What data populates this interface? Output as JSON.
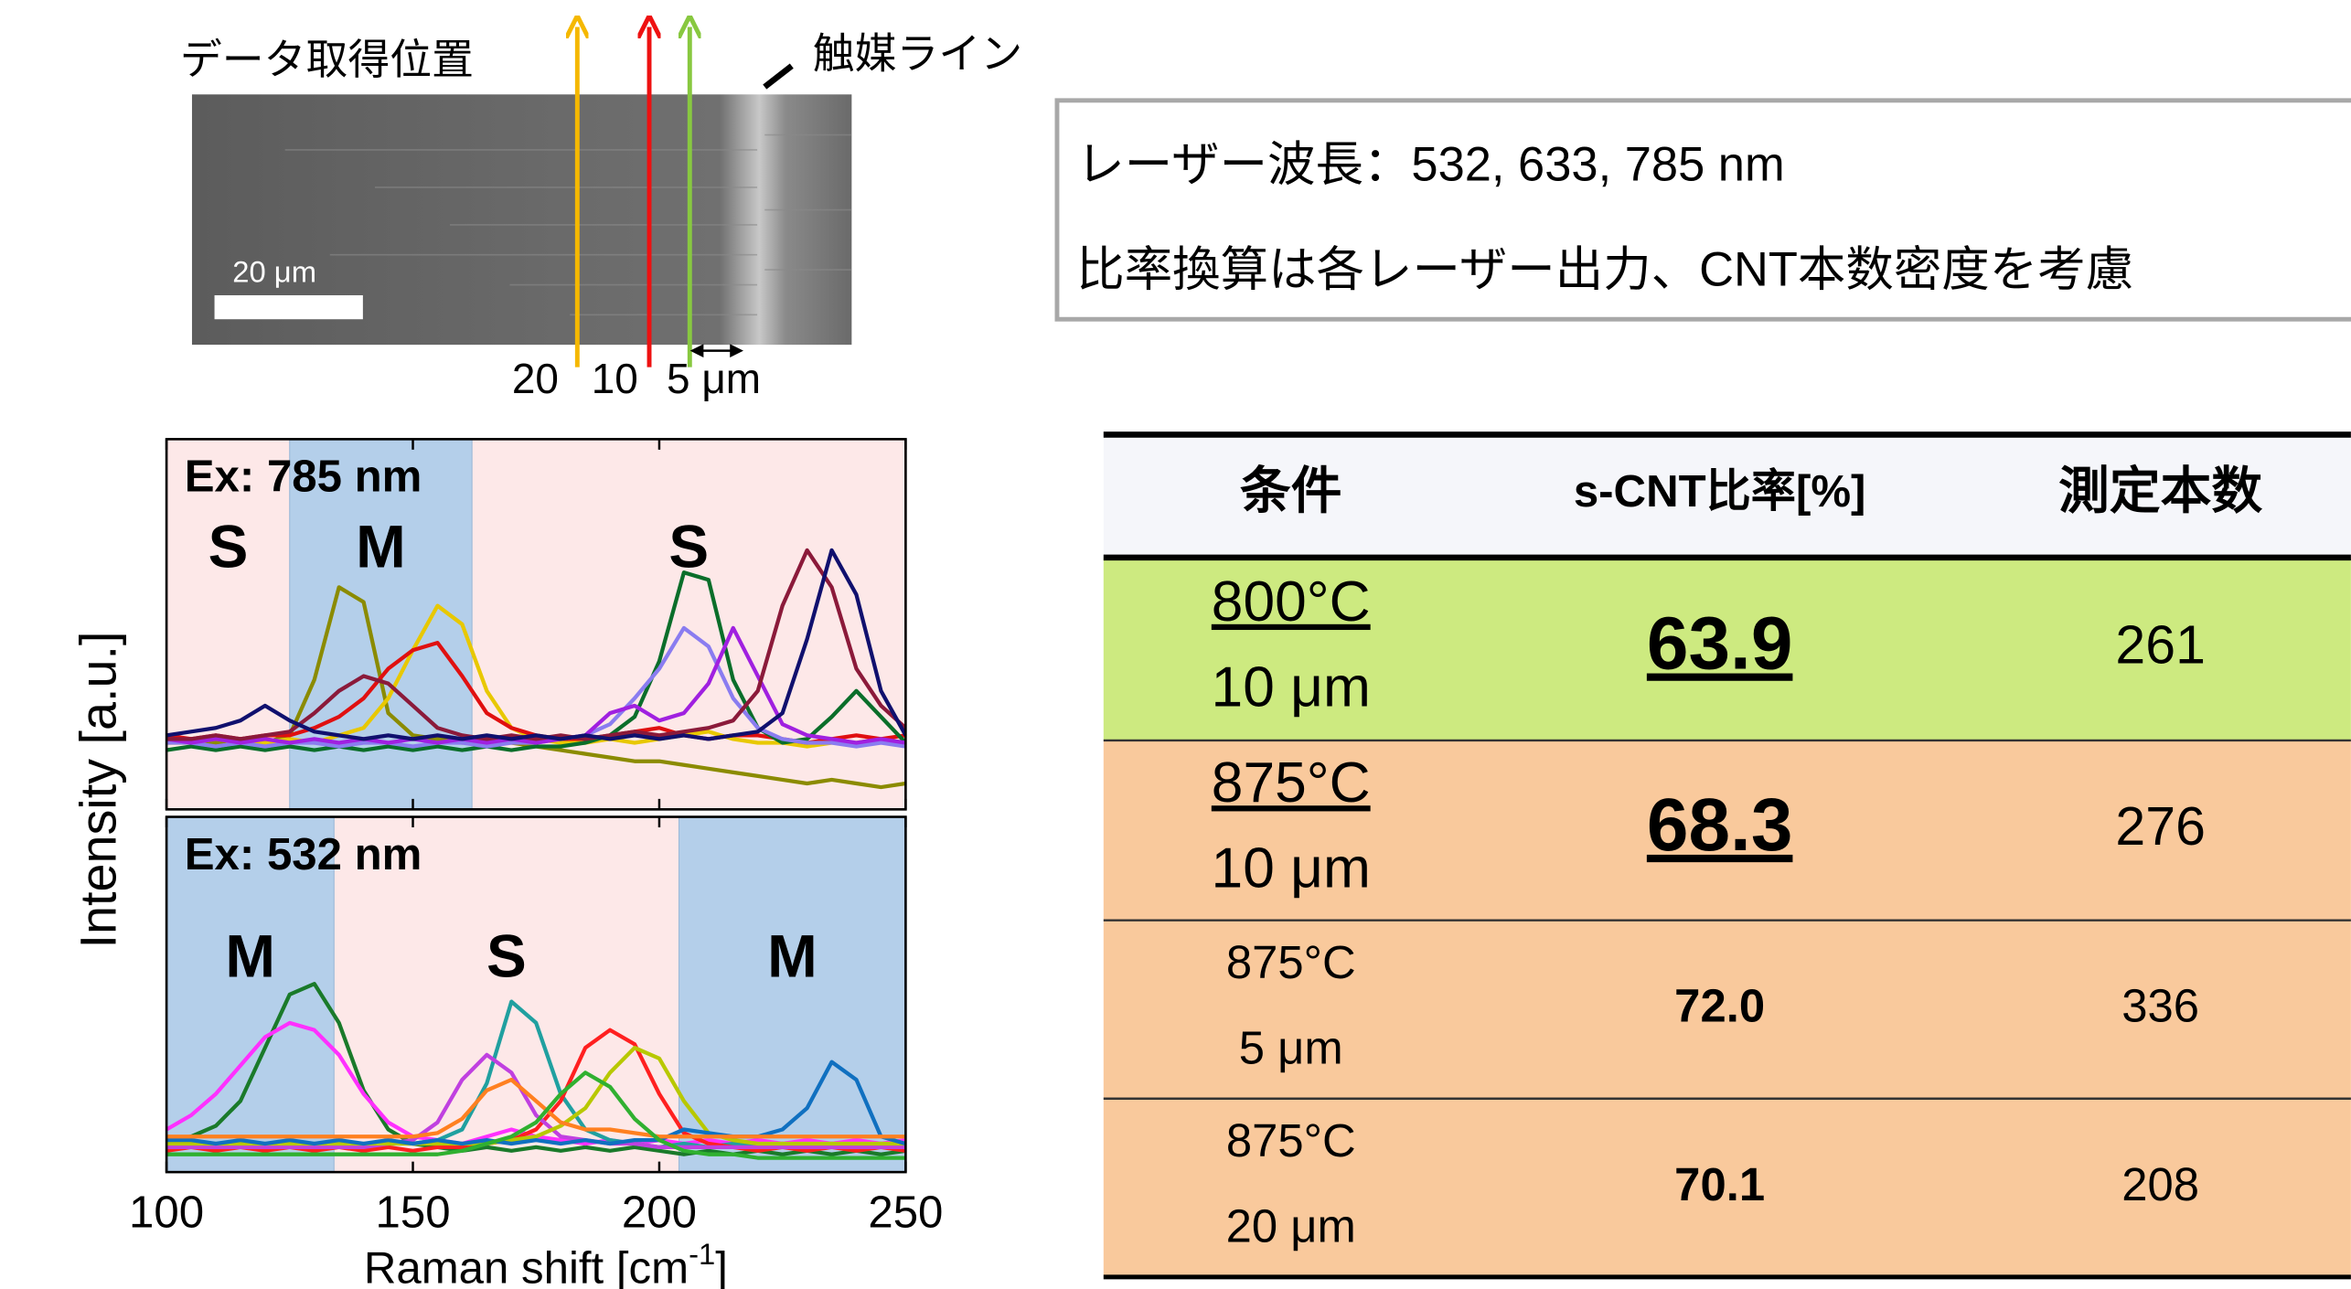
{
  "sem": {
    "label": "データ取得位置",
    "scale_bar": "20 μm",
    "catalyst_label": "触媒ライン",
    "distances": [
      "20",
      "10",
      "5 μm"
    ]
  },
  "laser_box": {
    "lines": [
      "レーザー波長：532, 633, 785 nm",
      "比率換算は各レーザー出力、CNT本数密度を考慮"
    ]
  },
  "y_label": "Intensity [a.u.]",
  "x_label_parts": [
    "Raman shift [cm",
    "-1",
    "]"
  ],
  "chart_data": [
    {
      "type": "line",
      "panel_label": "Ex: 785 nm",
      "xlim": [
        100,
        250
      ],
      "ylim": [
        0,
        10
      ],
      "xticks": [
        100,
        150,
        200,
        250
      ],
      "show_tick_labels": false,
      "regions": [
        {
          "label": "S",
          "from": 100,
          "to": 125,
          "color": "#fde8e8"
        },
        {
          "label": "M",
          "from": 125,
          "to": 162,
          "color": "#b4cfea"
        },
        {
          "label": "S",
          "from": 162,
          "to": 250,
          "color": "#fde8e8"
        }
      ],
      "x": [
        100,
        105,
        110,
        115,
        120,
        125,
        130,
        135,
        140,
        145,
        150,
        155,
        160,
        165,
        170,
        175,
        180,
        185,
        190,
        195,
        200,
        205,
        210,
        215,
        220,
        225,
        230,
        235,
        240,
        245,
        250
      ],
      "series": [
        {
          "color": "#8b8b00",
          "values": [
            1.9,
            1.9,
            1.8,
            1.9,
            1.8,
            2.0,
            3.5,
            6.0,
            5.6,
            2.6,
            2.0,
            1.9,
            1.8,
            1.9,
            1.8,
            1.7,
            1.6,
            1.5,
            1.4,
            1.3,
            1.3,
            1.2,
            1.1,
            1.0,
            0.9,
            0.8,
            0.7,
            0.8,
            0.7,
            0.6,
            0.7
          ]
        },
        {
          "color": "#e8c800",
          "values": [
            1.8,
            1.8,
            1.9,
            1.8,
            1.8,
            1.9,
            1.8,
            2.0,
            2.2,
            3.0,
            4.3,
            5.5,
            5.0,
            3.2,
            2.2,
            1.9,
            1.8,
            1.8,
            1.9,
            1.8,
            1.9,
            2.0,
            2.1,
            1.9,
            1.8,
            1.8,
            1.7,
            1.8,
            1.8,
            1.9,
            1.8
          ]
        },
        {
          "color": "#e01010",
          "values": [
            2.0,
            1.9,
            2.0,
            1.9,
            2.0,
            2.0,
            2.2,
            2.5,
            3.0,
            3.8,
            4.3,
            4.5,
            3.6,
            2.6,
            2.2,
            2.0,
            1.9,
            1.9,
            2.0,
            2.1,
            2.2,
            2.0,
            1.9,
            2.0,
            2.0,
            1.9,
            1.8,
            1.9,
            2.0,
            1.9,
            2.0
          ]
        },
        {
          "color": "#0a6e2a",
          "values": [
            1.6,
            1.7,
            1.6,
            1.7,
            1.6,
            1.7,
            1.6,
            1.7,
            1.6,
            1.7,
            1.6,
            1.7,
            1.6,
            1.7,
            1.6,
            1.7,
            1.7,
            1.8,
            2.0,
            2.5,
            4.0,
            6.4,
            6.2,
            3.5,
            2.2,
            1.8,
            1.9,
            2.5,
            3.2,
            2.5,
            1.8
          ]
        },
        {
          "color": "#8a7cf0",
          "values": [
            1.8,
            1.8,
            1.7,
            1.8,
            1.7,
            1.8,
            1.8,
            1.7,
            1.8,
            1.8,
            1.7,
            1.8,
            1.8,
            1.7,
            1.8,
            1.8,
            1.9,
            2.0,
            2.3,
            3.0,
            3.8,
            4.9,
            4.4,
            3.0,
            2.2,
            1.9,
            1.8,
            1.8,
            1.7,
            1.8,
            1.7
          ]
        },
        {
          "color": "#a020e0",
          "values": [
            1.9,
            1.8,
            1.9,
            1.8,
            1.9,
            1.8,
            1.9,
            1.8,
            1.9,
            1.8,
            1.9,
            1.8,
            1.9,
            1.8,
            1.9,
            1.8,
            1.9,
            2.0,
            2.6,
            2.8,
            2.4,
            2.6,
            3.4,
            4.9,
            3.6,
            2.3,
            2.0,
            1.9,
            1.8,
            1.9,
            1.8
          ]
        },
        {
          "color": "#8b1a3a",
          "values": [
            1.9,
            1.9,
            2.0,
            1.9,
            2.0,
            2.1,
            2.6,
            3.2,
            3.6,
            3.4,
            2.8,
            2.2,
            2.0,
            1.9,
            2.0,
            1.9,
            2.0,
            1.9,
            2.0,
            2.1,
            2.0,
            2.1,
            2.2,
            2.4,
            3.2,
            5.5,
            7.0,
            6.0,
            3.8,
            2.8,
            2.2
          ]
        },
        {
          "color": "#10106e",
          "values": [
            2.0,
            2.1,
            2.2,
            2.4,
            2.8,
            2.4,
            2.1,
            2.0,
            1.9,
            2.0,
            1.9,
            2.0,
            1.9,
            2.0,
            1.9,
            2.0,
            1.9,
            2.0,
            1.9,
            2.0,
            1.9,
            2.0,
            1.9,
            2.0,
            2.1,
            2.6,
            4.6,
            7.0,
            5.8,
            3.2,
            2.0
          ]
        }
      ]
    },
    {
      "type": "line",
      "panel_label": "Ex: 532 nm",
      "xlim": [
        100,
        250
      ],
      "ylim": [
        0,
        10
      ],
      "xticks": [
        100,
        150,
        200,
        250
      ],
      "show_tick_labels": true,
      "regions": [
        {
          "label": "M",
          "from": 100,
          "to": 134,
          "color": "#b4cfea"
        },
        {
          "label": "S",
          "from": 134,
          "to": 204,
          "color": "#fde8e8"
        },
        {
          "label": "M",
          "from": 204,
          "to": 250,
          "color": "#b4cfea"
        }
      ],
      "x": [
        100,
        105,
        110,
        115,
        120,
        125,
        130,
        135,
        140,
        145,
        150,
        155,
        160,
        165,
        170,
        175,
        180,
        185,
        190,
        195,
        200,
        205,
        210,
        215,
        220,
        225,
        230,
        235,
        240,
        245,
        250
      ],
      "series": [
        {
          "color": "#1a7a2a",
          "values": [
            0.9,
            1.0,
            1.3,
            2.0,
            3.5,
            5.0,
            5.3,
            4.2,
            2.3,
            1.2,
            0.8,
            0.7,
            0.6,
            0.7,
            0.6,
            0.7,
            0.6,
            0.7,
            0.6,
            0.7,
            0.6,
            0.5,
            0.6,
            0.5,
            0.6,
            0.5,
            0.6,
            0.5,
            0.6,
            0.5,
            0.6
          ]
        },
        {
          "color": "#ff30ff",
          "values": [
            1.2,
            1.6,
            2.2,
            3.0,
            3.8,
            4.2,
            4.0,
            3.3,
            2.2,
            1.4,
            1.0,
            0.9,
            0.8,
            1.0,
            1.2,
            1.0,
            0.9,
            0.8,
            0.9,
            0.8,
            0.9,
            0.8,
            0.9,
            0.8,
            0.9,
            0.8,
            0.9,
            0.8,
            0.9,
            0.8,
            0.9
          ]
        },
        {
          "color": "#20a0a0",
          "values": [
            0.8,
            0.8,
            0.7,
            0.8,
            0.7,
            0.8,
            0.7,
            0.8,
            0.7,
            0.8,
            0.8,
            0.9,
            1.2,
            2.5,
            4.8,
            4.2,
            2.2,
            1.2,
            0.9,
            0.8,
            0.7,
            0.8,
            0.7,
            0.8,
            0.7,
            0.8,
            0.7,
            0.8,
            0.7,
            0.8,
            0.7
          ]
        },
        {
          "color": "#ff2020",
          "values": [
            0.6,
            0.7,
            0.6,
            0.7,
            0.6,
            0.7,
            0.6,
            0.7,
            0.6,
            0.7,
            0.6,
            0.7,
            0.7,
            0.8,
            0.9,
            1.2,
            2.0,
            3.5,
            4.0,
            3.6,
            2.2,
            1.1,
            0.8,
            0.7,
            0.6,
            0.7,
            0.6,
            0.7,
            0.6,
            0.7,
            0.6
          ]
        },
        {
          "color": "#c040e0",
          "values": [
            0.7,
            0.7,
            0.7,
            0.7,
            0.7,
            0.7,
            0.7,
            0.7,
            0.7,
            0.8,
            0.9,
            1.4,
            2.6,
            3.3,
            2.8,
            1.6,
            1.0,
            0.9,
            0.8,
            0.8,
            0.7,
            0.7,
            0.7,
            0.7,
            0.7,
            0.7,
            0.7,
            0.7,
            0.7,
            0.7,
            0.7
          ]
        },
        {
          "color": "#b8c800",
          "values": [
            0.8,
            0.8,
            0.8,
            0.8,
            0.8,
            0.8,
            0.8,
            0.8,
            0.8,
            0.8,
            0.8,
            0.8,
            0.8,
            0.8,
            0.9,
            1.0,
            1.3,
            1.8,
            2.8,
            3.5,
            3.2,
            2.0,
            1.1,
            0.9,
            0.8,
            0.8,
            0.8,
            0.8,
            0.8,
            0.8,
            0.8
          ]
        },
        {
          "color": "#1070c0",
          "values": [
            0.9,
            0.9,
            0.8,
            0.9,
            0.8,
            0.9,
            0.8,
            0.9,
            0.8,
            0.9,
            0.8,
            0.9,
            0.8,
            0.9,
            0.8,
            0.9,
            0.8,
            0.9,
            0.8,
            0.9,
            0.9,
            1.2,
            1.1,
            1.0,
            1.0,
            1.2,
            1.8,
            3.1,
            2.6,
            1.0,
            0.8
          ]
        },
        {
          "color": "#ff8020",
          "values": [
            1.0,
            1.0,
            1.0,
            1.0,
            1.0,
            1.0,
            1.0,
            1.0,
            1.0,
            1.0,
            1.0,
            1.1,
            1.5,
            2.3,
            2.6,
            2.0,
            1.4,
            1.2,
            1.2,
            1.1,
            1.0,
            1.0,
            1.0,
            1.0,
            1.0,
            1.0,
            1.0,
            1.0,
            1.0,
            1.0,
            1.0
          ]
        },
        {
          "color": "#30b030",
          "values": [
            0.5,
            0.5,
            0.5,
            0.5,
            0.5,
            0.5,
            0.5,
            0.5,
            0.5,
            0.5,
            0.5,
            0.5,
            0.6,
            0.8,
            1.0,
            1.4,
            2.2,
            2.8,
            2.4,
            1.5,
            0.9,
            0.6,
            0.5,
            0.5,
            0.4,
            0.4,
            0.4,
            0.4,
            0.4,
            0.4,
            0.4
          ]
        }
      ]
    }
  ],
  "table": {
    "header": [
      "条件",
      "s-CNT比率[%]",
      "測定本数"
    ],
    "rows": [
      {
        "condition": [
          "800°C",
          "10 μm"
        ],
        "ratio": "63.9",
        "count": "261",
        "color": "#cdea80",
        "emphasis": true
      },
      {
        "condition": [
          "875°C",
          "10 μm"
        ],
        "ratio": "68.3",
        "count": "276",
        "color": "#f9c99c",
        "emphasis": true
      },
      {
        "condition": [
          "875°C",
          "5 μm"
        ],
        "ratio": "72.0",
        "count": "336",
        "color": "#f9c99c",
        "emphasis": false
      },
      {
        "condition": [
          "875°C",
          "20 μm"
        ],
        "ratio": "70.1",
        "count": "208",
        "color": "#f9c99c",
        "emphasis": false
      }
    ]
  }
}
